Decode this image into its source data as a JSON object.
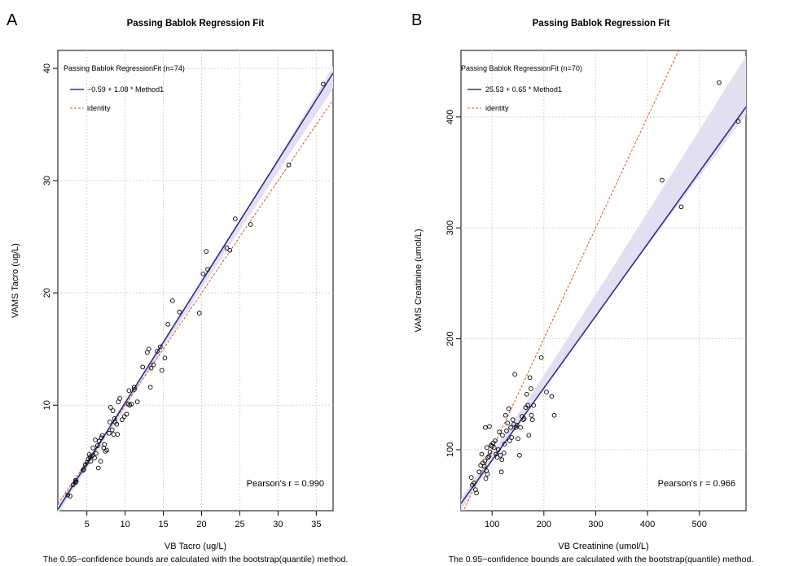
{
  "chart_data": [
    {
      "panel": "A",
      "type": "scatter",
      "title": "Passing Bablok Regression Fit",
      "xlabel": "VB Tacro (ug/L)",
      "ylabel": "VAMS Tacro (ug/L)",
      "note": "The 0.95−confidence bounds are calculated with the bootstrap(quantile) method.",
      "xlim": [
        1.2,
        37.2
      ],
      "ylim": [
        0.6,
        41.6
      ],
      "xticks": [
        5,
        10,
        15,
        20,
        25,
        30,
        35
      ],
      "yticks": [
        10,
        20,
        30,
        40
      ],
      "grid": true,
      "legend": {
        "position": "top-left",
        "title": "Passing Bablok RegressionFit (n=74)",
        "entries": [
          "−0.59 + 1.08 * Method1",
          "identity"
        ]
      },
      "pearson": "Pearson's r = 0.990",
      "regression": {
        "intercept": -0.59,
        "slope": 1.08
      },
      "ci_band": [
        [
          1.2,
          0.3,
          1.1
        ],
        [
          10,
          9.75,
          10.3
        ],
        [
          20,
          20.4,
          21.0
        ],
        [
          30,
          30.8,
          32.0
        ],
        [
          37.2,
          38.2,
          40.2
        ]
      ],
      "points": [
        [
          2.8,
          1.9
        ],
        [
          3.2,
          2.9
        ],
        [
          3.5,
          3.1
        ],
        [
          3.5,
          3.3
        ],
        [
          4.5,
          4.2
        ],
        [
          4.6,
          4.3
        ],
        [
          4.8,
          4.7
        ],
        [
          5.0,
          4.9
        ],
        [
          5.2,
          5.2
        ],
        [
          5.4,
          5.4
        ],
        [
          5.3,
          5.6
        ],
        [
          5.7,
          5.5
        ],
        [
          5.8,
          6.2
        ],
        [
          6.0,
          5.3
        ],
        [
          6.2,
          5.7
        ],
        [
          6.4,
          6.4
        ],
        [
          6.5,
          4.4
        ],
        [
          6.6,
          6.8
        ],
        [
          6.9,
          7.1
        ],
        [
          6.8,
          5.0
        ],
        [
          7.0,
          7.3
        ],
        [
          7.2,
          6.2
        ],
        [
          7.4,
          5.9
        ],
        [
          7.6,
          6.0
        ],
        [
          7.9,
          7.5
        ],
        [
          8.0,
          8.5
        ],
        [
          8.1,
          9.8
        ],
        [
          8.3,
          7.8
        ],
        [
          8.4,
          9.5
        ],
        [
          8.5,
          7.4
        ],
        [
          8.7,
          8.5
        ],
        [
          8.9,
          8.3
        ],
        [
          9.0,
          7.4
        ],
        [
          9.1,
          10.3
        ],
        [
          9.3,
          10.6
        ],
        [
          9.6,
          8.7
        ],
        [
          9.9,
          9.0
        ],
        [
          10.2,
          9.2
        ],
        [
          10.4,
          10.1
        ],
        [
          10.5,
          11.3
        ],
        [
          10.6,
          10.0
        ],
        [
          11.2,
          11.4
        ],
        [
          11.6,
          10.3
        ],
        [
          11.2,
          11.6
        ],
        [
          12.3,
          13.4
        ],
        [
          12.9,
          14.7
        ],
        [
          13.1,
          15.0
        ],
        [
          13.3,
          11.6
        ],
        [
          13.4,
          13.3
        ],
        [
          13.7,
          13.6
        ],
        [
          14.2,
          14.8
        ],
        [
          14.6,
          15.2
        ],
        [
          14.8,
          13.1
        ],
        [
          15.2,
          14.2
        ],
        [
          15.6,
          17.2
        ],
        [
          16.2,
          19.3
        ],
        [
          17.1,
          18.3
        ],
        [
          19.7,
          18.2
        ],
        [
          20.2,
          21.7
        ],
        [
          20.6,
          23.7
        ],
        [
          20.8,
          22.1
        ],
        [
          23.3,
          24.0
        ],
        [
          23.7,
          23.8
        ],
        [
          24.4,
          26.6
        ],
        [
          26.4,
          26.1
        ],
        [
          31.4,
          31.4
        ],
        [
          35.9,
          38.6
        ],
        [
          2.5,
          2.0
        ],
        [
          3.6,
          3.2
        ],
        [
          5.5,
          5.0
        ],
        [
          6.1,
          6.9
        ],
        [
          7.3,
          6.5
        ],
        [
          8.6,
          8.8
        ],
        [
          10.8,
          10.1
        ]
      ]
    },
    {
      "panel": "B",
      "type": "scatter",
      "title": "Passing Bablok Regression Fit",
      "xlabel": "VB Creatinine (umol/L)",
      "ylabel": "VAMS Creatinine (umol/L)",
      "note": "The 0.95−confidence bounds are calculated with the bootstrap(quantile) method.",
      "xlim": [
        40,
        590
      ],
      "ylim": [
        45,
        460
      ],
      "xticks": [
        100,
        200,
        300,
        400,
        500
      ],
      "yticks": [
        100,
        200,
        300,
        400
      ],
      "grid": true,
      "legend": {
        "position": "top-left",
        "title": "Passing Bablok RegressionFit (n=70)",
        "entries": [
          "25.53 + 0.65 * Method1",
          "identity"
        ]
      },
      "pearson": "Pearson's r = 0.966",
      "regression": {
        "intercept": 25.53,
        "slope": 0.65
      },
      "ci_band": [
        [
          40,
          45,
          56
        ],
        [
          100,
          89,
          97
        ],
        [
          200,
          156,
          167
        ],
        [
          300,
          221,
          240
        ],
        [
          400,
          284,
          314
        ],
        [
          500,
          346,
          388
        ],
        [
          590,
          402,
          455
        ]
      ],
      "points": [
        [
          60,
          75
        ],
        [
          62,
          68
        ],
        [
          65,
          70
        ],
        [
          68,
          64
        ],
        [
          70,
          61
        ],
        [
          75,
          80
        ],
        [
          78,
          86
        ],
        [
          80,
          96
        ],
        [
          82,
          88
        ],
        [
          85,
          85
        ],
        [
          86,
          90
        ],
        [
          87,
          120
        ],
        [
          88,
          74
        ],
        [
          89,
          81
        ],
        [
          90,
          102
        ],
        [
          91,
          78
        ],
        [
          92,
          93
        ],
        [
          94,
          94
        ],
        [
          95,
          121
        ],
        [
          96,
          98
        ],
        [
          98,
          104
        ],
        [
          100,
          103
        ],
        [
          102,
          106
        ],
        [
          104,
          102
        ],
        [
          106,
          108
        ],
        [
          108,
          96
        ],
        [
          110,
          93
        ],
        [
          112,
          100
        ],
        [
          114,
          116
        ],
        [
          116,
          95
        ],
        [
          118,
          80
        ],
        [
          119,
          91
        ],
        [
          120,
          113
        ],
        [
          123,
          97
        ],
        [
          124,
          105
        ],
        [
          126,
          131
        ],
        [
          128,
          117
        ],
        [
          130,
          124
        ],
        [
          132,
          137
        ],
        [
          134,
          108
        ],
        [
          136,
          120
        ],
        [
          138,
          111
        ],
        [
          140,
          127
        ],
        [
          142,
          123
        ],
        [
          144,
          168
        ],
        [
          146,
          120
        ],
        [
          148,
          122
        ],
        [
          150,
          110
        ],
        [
          153,
          95
        ],
        [
          155,
          120
        ],
        [
          158,
          130
        ],
        [
          160,
          127
        ],
        [
          162,
          128
        ],
        [
          165,
          138
        ],
        [
          167,
          150
        ],
        [
          169,
          140
        ],
        [
          171,
          113
        ],
        [
          173,
          165
        ],
        [
          175,
          155
        ],
        [
          176,
          131
        ],
        [
          178,
          127
        ],
        [
          180,
          140
        ],
        [
          195,
          183
        ],
        [
          205,
          152
        ],
        [
          215,
          148
        ],
        [
          220,
          131
        ],
        [
          428,
          343
        ],
        [
          465,
          319
        ],
        [
          538,
          431
        ],
        [
          575,
          396
        ]
      ]
    }
  ]
}
